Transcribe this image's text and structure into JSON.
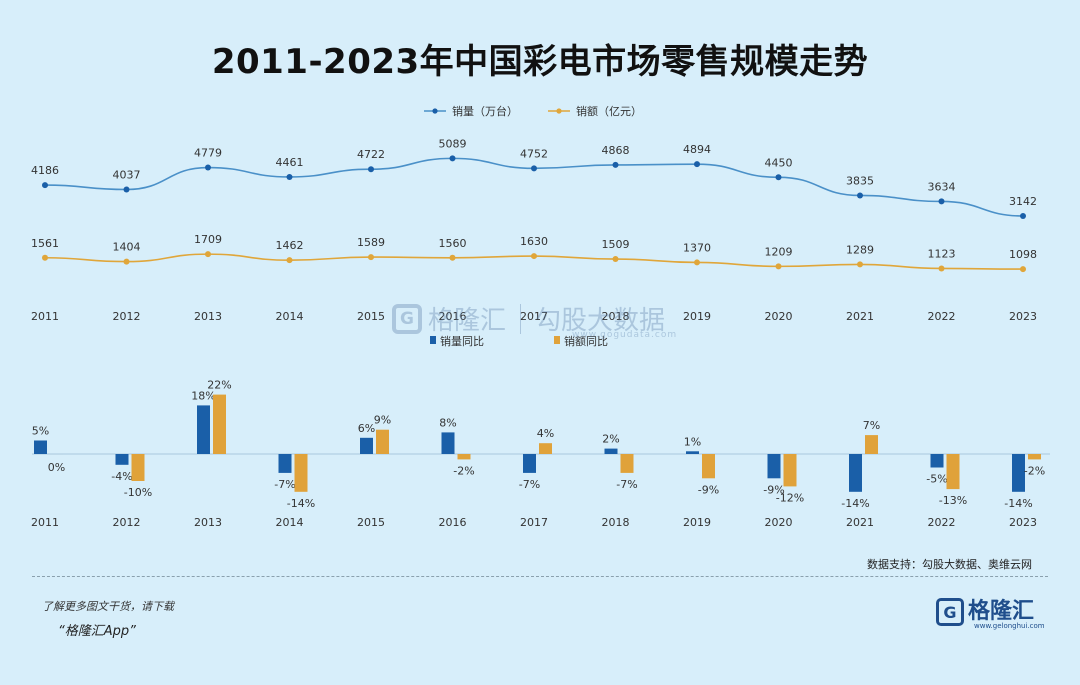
{
  "title": "2011-2023年中国彩电市场零售规模走势",
  "colors": {
    "volume": "#4a90c8",
    "volume_dot": "#1a5fa8",
    "revenue": "#e0a63a",
    "bar_volume": "#1a5fa8",
    "bar_revenue": "#e0a23a"
  },
  "chart_data": [
    {
      "type": "line",
      "categories": [
        "2011",
        "2012",
        "2013",
        "2014",
        "2015",
        "2016",
        "2017",
        "2018",
        "2019",
        "2020",
        "2021",
        "2022",
        "2023"
      ],
      "series": [
        {
          "name": "销量（万台）",
          "values": [
            4186,
            4037,
            4779,
            4461,
            4722,
            5089,
            4752,
            4868,
            4894,
            4450,
            3835,
            3634,
            3142
          ]
        },
        {
          "name": "销额（亿元）",
          "values": [
            1561,
            1404,
            1709,
            1462,
            1589,
            1560,
            1630,
            1509,
            1370,
            1209,
            1289,
            1123,
            1098
          ]
        }
      ]
    },
    {
      "type": "bar",
      "categories": [
        "2011",
        "2012",
        "2013",
        "2014",
        "2015",
        "2016",
        "2017",
        "2018",
        "2019",
        "2020",
        "2021",
        "2022",
        "2023"
      ],
      "series": [
        {
          "name": "销量同比",
          "values": [
            5,
            -4,
            18,
            -7,
            6,
            8,
            -7,
            2,
            1,
            -9,
            -14,
            -5,
            -14
          ]
        },
        {
          "name": "销额同比",
          "values": [
            0,
            -10,
            22,
            -14,
            9,
            -2,
            4,
            -7,
            -9,
            -12,
            7,
            -13,
            -2
          ]
        }
      ]
    }
  ],
  "source": "数据支持：勾股大数据、奥维云网",
  "promo": {
    "line1": "了解更多图文干货，请下载",
    "line2": "“格隆汇App”"
  },
  "brand": {
    "mark": "G",
    "name": "格隆汇",
    "url": "www.gelonghui.com"
  },
  "watermark": {
    "mark": "G",
    "left": "格隆汇",
    "right": "勾股大数据",
    "url": "www.gogudata.com"
  }
}
